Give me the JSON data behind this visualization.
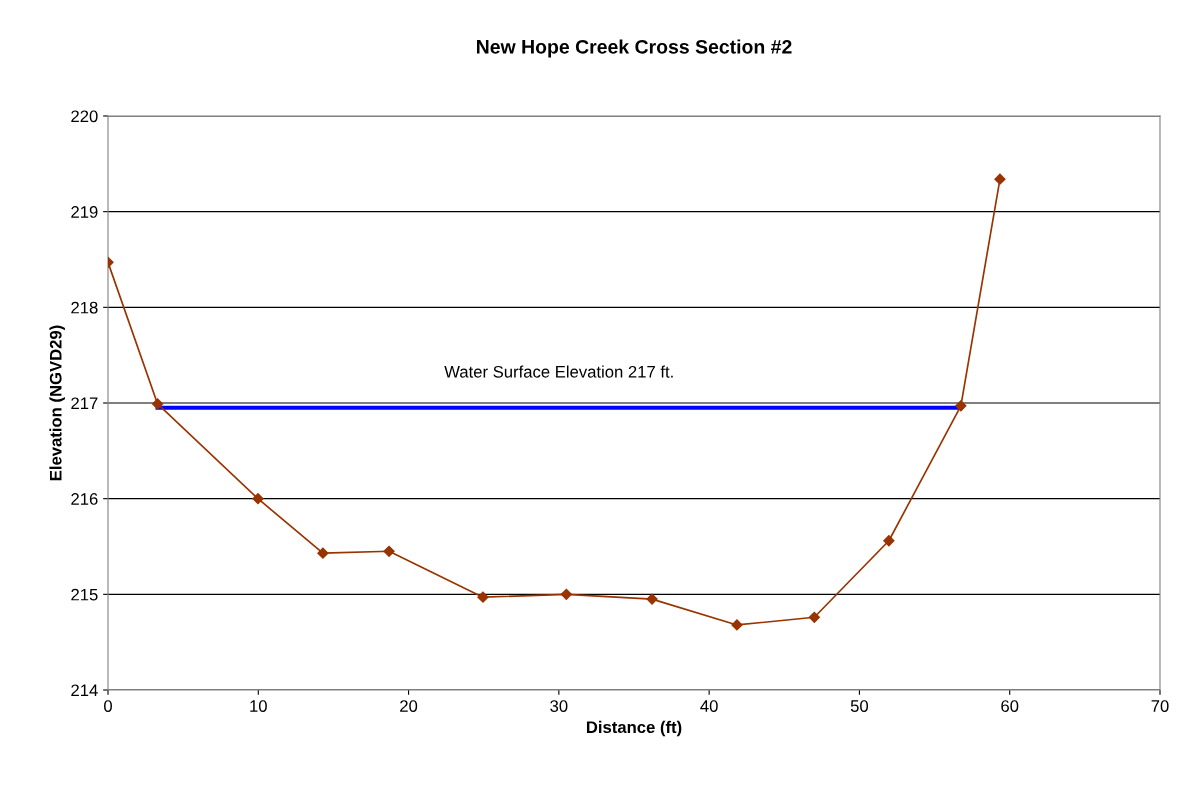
{
  "chart_data": {
    "type": "line",
    "title": "New Hope Creek Cross Section #2",
    "xlabel": "Distance (ft)",
    "ylabel": "Elevation (NGVD29)",
    "series": [
      {
        "color": "#993300",
        "marker": "diamond",
        "x": [
          0,
          3.3,
          9.98,
          14.3,
          18.7,
          24.95,
          30.5,
          36.2,
          41.85,
          47.0,
          51.96,
          56.75,
          59.35
        ],
        "values": [
          218.47,
          216.99,
          216.0,
          215.43,
          215.45,
          214.97,
          215.0,
          214.95,
          214.68,
          214.76,
          215.56,
          216.97,
          219.34
        ]
      },
      {
        "name": "Water Surface Elevation 217 ft.",
        "color": "#0000ff",
        "marker": "none",
        "x": [
          3.3,
          56.75
        ],
        "values": [
          216.95,
          216.95
        ]
      }
    ],
    "xlim": [
      0,
      70
    ],
    "xticks": [
      0,
      10,
      20,
      30,
      40,
      50,
      60,
      70
    ],
    "ylim": [
      214,
      220
    ],
    "yticks": [
      214,
      215,
      216,
      217,
      218,
      219,
      220
    ],
    "grid": "y",
    "legend": false,
    "line_style": "solid"
  }
}
